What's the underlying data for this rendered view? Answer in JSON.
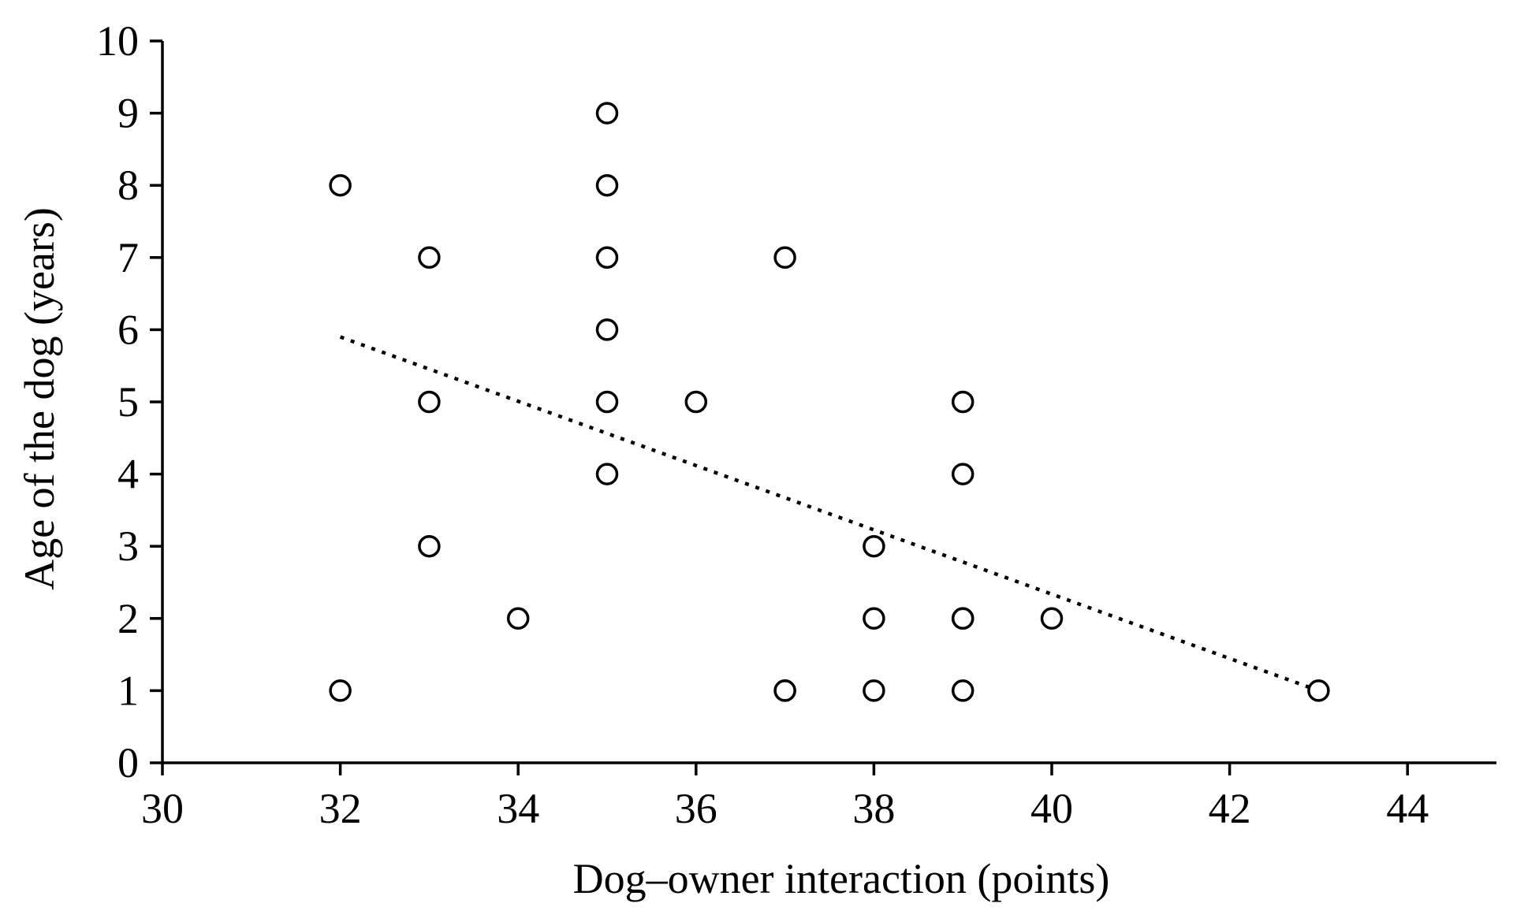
{
  "chart_data": {
    "type": "scatter",
    "title": "",
    "xlabel": "Dog–owner interaction (points)",
    "ylabel": "Age of the dog (years)",
    "xlim": [
      30,
      45
    ],
    "ylim": [
      0,
      10
    ],
    "xticks": [
      30,
      32,
      34,
      36,
      38,
      40,
      42,
      44
    ],
    "yticks": [
      0,
      1,
      2,
      3,
      4,
      5,
      6,
      7,
      8,
      9,
      10
    ],
    "series": [
      {
        "name": "observations",
        "marker": "open-circle",
        "points": [
          {
            "x": 32,
            "y": 8
          },
          {
            "x": 32,
            "y": 1
          },
          {
            "x": 33,
            "y": 7
          },
          {
            "x": 33,
            "y": 5
          },
          {
            "x": 33,
            "y": 3
          },
          {
            "x": 34,
            "y": 2
          },
          {
            "x": 35,
            "y": 9
          },
          {
            "x": 35,
            "y": 8
          },
          {
            "x": 35,
            "y": 7
          },
          {
            "x": 35,
            "y": 6
          },
          {
            "x": 35,
            "y": 5
          },
          {
            "x": 35,
            "y": 4
          },
          {
            "x": 36,
            "y": 5
          },
          {
            "x": 37,
            "y": 7
          },
          {
            "x": 37,
            "y": 1
          },
          {
            "x": 37,
            "y": 1
          },
          {
            "x": 38,
            "y": 3
          },
          {
            "x": 38,
            "y": 2
          },
          {
            "x": 38,
            "y": 1
          },
          {
            "x": 39,
            "y": 5
          },
          {
            "x": 39,
            "y": 4
          },
          {
            "x": 39,
            "y": 2
          },
          {
            "x": 39,
            "y": 2
          },
          {
            "x": 39,
            "y": 1
          },
          {
            "x": 40,
            "y": 2
          },
          {
            "x": 43,
            "y": 1
          }
        ]
      }
    ],
    "trendline": {
      "type": "linear",
      "style": "dotted",
      "x_start": 32,
      "y_start": 5.9,
      "x_end": 43,
      "y_end": 1.0
    }
  }
}
